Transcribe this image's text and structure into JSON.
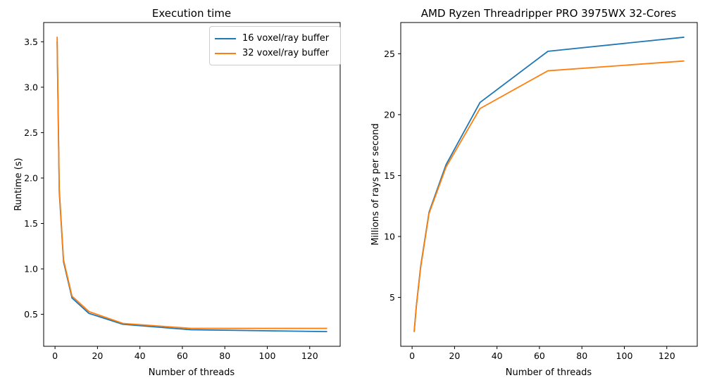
{
  "figure": {
    "background": "#ffffff",
    "frame_color": "#000000"
  },
  "chart_data": [
    {
      "type": "line",
      "title": "Execution time",
      "xlabel": "Number of threads",
      "ylabel": "Runtime (s)",
      "x": [
        1,
        2,
        4,
        8,
        16,
        32,
        64,
        128
      ],
      "series": [
        {
          "name": "16 voxel/ray buffer",
          "color": "#1f77b4",
          "values": [
            3.5,
            1.85,
            1.08,
            0.68,
            0.51,
            0.39,
            0.33,
            0.31
          ]
        },
        {
          "name": "32 voxel/ray buffer",
          "color": "#ff7f0e",
          "values": [
            3.55,
            1.88,
            1.1,
            0.7,
            0.53,
            0.4,
            0.345,
            0.345
          ]
        }
      ],
      "xlim": [
        -5.35,
        134.35
      ],
      "ylim": [
        0.148,
        3.712
      ],
      "xticks": [
        {
          "v": 0,
          "label": "0"
        },
        {
          "v": 20,
          "label": "20"
        },
        {
          "v": 40,
          "label": "40"
        },
        {
          "v": 60,
          "label": "60"
        },
        {
          "v": 80,
          "label": "80"
        },
        {
          "v": 100,
          "label": "100"
        },
        {
          "v": 120,
          "label": "120"
        }
      ],
      "yticks": [
        {
          "v": 0.5,
          "label": "0.5"
        },
        {
          "v": 1.0,
          "label": "1.0"
        },
        {
          "v": 1.5,
          "label": "1.5"
        },
        {
          "v": 2.0,
          "label": "2.0"
        },
        {
          "v": 2.5,
          "label": "2.5"
        },
        {
          "v": 3.0,
          "label": "3.0"
        },
        {
          "v": 3.5,
          "label": "3.5"
        }
      ],
      "grid": false,
      "legend": {
        "visible": true,
        "position": "upper right",
        "items": [
          "16 voxel/ray buffer",
          "32 voxel/ray buffer"
        ]
      }
    },
    {
      "type": "line",
      "title": "AMD Ryzen Threadripper PRO 3975WX 32-Cores",
      "xlabel": "Number of threads",
      "ylabel": "Millions of rays per second",
      "x": [
        1,
        2,
        4,
        8,
        16,
        32,
        64,
        128
      ],
      "series": [
        {
          "name": "16 voxel/ray buffer",
          "color": "#1f77b4",
          "values": [
            2.25,
            4.3,
            7.5,
            12.0,
            15.9,
            21.0,
            25.2,
            26.35
          ]
        },
        {
          "name": "32 voxel/ray buffer",
          "color": "#ff7f0e",
          "values": [
            2.2,
            4.25,
            7.4,
            11.9,
            15.7,
            20.5,
            23.6,
            24.4
          ]
        }
      ],
      "xlim": [
        -5.35,
        134.35
      ],
      "ylim": [
        0.99,
        27.56
      ],
      "xticks": [
        {
          "v": 0,
          "label": "0"
        },
        {
          "v": 20,
          "label": "20"
        },
        {
          "v": 40,
          "label": "40"
        },
        {
          "v": 60,
          "label": "60"
        },
        {
          "v": 80,
          "label": "80"
        },
        {
          "v": 100,
          "label": "100"
        },
        {
          "v": 120,
          "label": "120"
        }
      ],
      "yticks": [
        {
          "v": 5,
          "label": "5"
        },
        {
          "v": 10,
          "label": "10"
        },
        {
          "v": 15,
          "label": "15"
        },
        {
          "v": 20,
          "label": "20"
        },
        {
          "v": 25,
          "label": "25"
        }
      ],
      "grid": false,
      "legend": {
        "visible": false
      }
    }
  ]
}
